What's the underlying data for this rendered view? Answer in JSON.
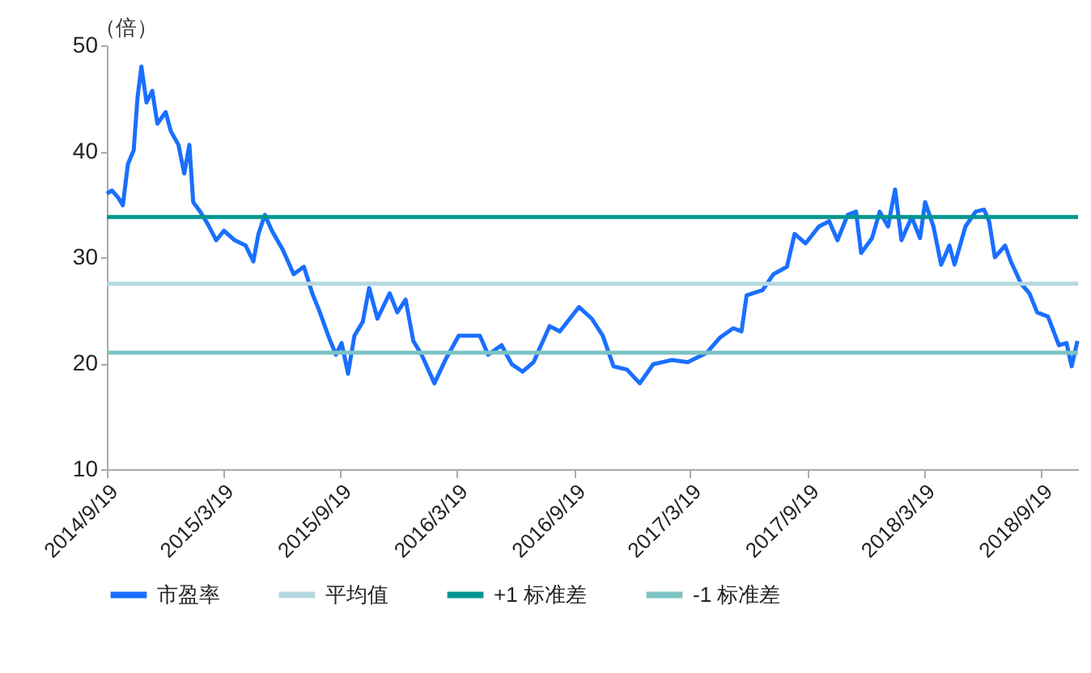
{
  "chart_data": {
    "type": "line",
    "ylabel": "（倍）",
    "x": [
      "2014-09-19",
      "2014-09-27",
      "2014-10-07",
      "2014-10-14",
      "2014-10-22",
      "2014-10-31",
      "2014-11-06",
      "2014-11-12",
      "2014-11-20",
      "2014-11-29",
      "2014-12-07",
      "2014-12-20",
      "2014-12-28",
      "2015-01-09",
      "2015-01-18",
      "2015-01-26",
      "2015-02-01",
      "2015-02-12",
      "2015-02-24",
      "2015-03-09",
      "2015-03-21",
      "2015-04-07",
      "2015-04-24",
      "2015-05-06",
      "2015-05-14",
      "2015-05-24",
      "2015-06-04",
      "2015-06-21",
      "2015-07-08",
      "2015-07-24",
      "2015-08-06",
      "2015-08-18",
      "2015-08-31",
      "2015-09-12",
      "2015-09-21",
      "2015-10-01",
      "2015-10-11",
      "2015-10-24",
      "2015-11-03",
      "2015-11-16",
      "2015-12-05",
      "2015-12-17",
      "2015-12-30",
      "2016-01-11",
      "2016-01-24",
      "2016-02-13",
      "2016-03-01",
      "2016-03-22",
      "2016-04-08",
      "2016-04-24",
      "2016-05-07",
      "2016-05-28",
      "2016-06-13",
      "2016-06-30",
      "2016-07-17",
      "2016-07-25",
      "2016-08-11",
      "2016-08-27",
      "2016-09-26",
      "2016-10-16",
      "2016-11-02",
      "2016-11-19",
      "2016-12-10",
      "2016-12-30",
      "2017-01-20",
      "2017-02-18",
      "2017-03-15",
      "2017-04-14",
      "2017-05-04",
      "2017-05-25",
      "2017-06-07",
      "2017-06-15",
      "2017-07-10",
      "2017-07-27",
      "2017-08-17",
      "2017-08-29",
      "2017-09-15",
      "2017-10-06",
      "2017-10-22",
      "2017-11-04",
      "2017-11-20",
      "2017-12-03",
      "2017-12-11",
      "2017-12-28",
      "2018-01-09",
      "2018-01-22",
      "2018-02-02",
      "2018-02-12",
      "2018-02-28",
      "2018-03-13",
      "2018-03-21",
      "2018-04-03",
      "2018-04-15",
      "2018-04-28",
      "2018-05-06",
      "2018-05-23",
      "2018-06-08",
      "2018-06-21",
      "2018-06-29",
      "2018-07-08",
      "2018-07-24",
      "2018-08-02",
      "2018-08-18",
      "2018-08-31",
      "2018-09-12",
      "2018-09-29",
      "2018-10-16",
      "2018-10-28",
      "2018-11-05",
      "2018-11-14"
    ],
    "series": [
      {
        "name": "市盈率",
        "color": "#1a6fff",
        "values": [
          36.0,
          36.3,
          35.6,
          34.9,
          38.8,
          40.1,
          45.1,
          48.0,
          44.6,
          45.7,
          42.6,
          43.7,
          41.9,
          40.6,
          37.9,
          40.6,
          35.2,
          34.3,
          33.1,
          31.6,
          32.5,
          31.6,
          31.1,
          29.6,
          32.2,
          34.0,
          32.5,
          30.7,
          28.4,
          29.1,
          26.6,
          24.8,
          22.6,
          20.8,
          21.9,
          19.0,
          22.6,
          23.9,
          27.1,
          24.2,
          26.6,
          24.8,
          26.0,
          22.1,
          20.8,
          18.1,
          20.3,
          22.6,
          22.6,
          22.6,
          20.8,
          21.7,
          19.9,
          19.2,
          20.1,
          21.2,
          23.5,
          23.0,
          25.3,
          24.2,
          22.6,
          19.7,
          19.4,
          18.1,
          19.9,
          20.3,
          20.1,
          21.0,
          22.4,
          23.3,
          23.0,
          26.4,
          26.9,
          28.4,
          29.1,
          32.2,
          31.3,
          32.9,
          33.4,
          31.6,
          34.0,
          34.3,
          30.4,
          31.8,
          34.3,
          32.9,
          36.4,
          31.6,
          33.8,
          31.8,
          35.2,
          32.9,
          29.3,
          31.1,
          29.3,
          32.9,
          34.3,
          34.5,
          33.4,
          30.0,
          31.1,
          29.6,
          27.5,
          26.6,
          24.8,
          24.4,
          21.7,
          21.9,
          19.7,
          22.1
        ]
      }
    ],
    "xlim": [
      "2014-09-19",
      "2018-11-15"
    ],
    "xticks": [
      {
        "value": "2014-09-19",
        "label": "2014/9/19"
      },
      {
        "value": "2015-03-19",
        "label": "2015/3/19"
      },
      {
        "value": "2015-09-19",
        "label": "2015/9/19"
      },
      {
        "value": "2016-03-19",
        "label": "2016/3/19"
      },
      {
        "value": "2016-09-19",
        "label": "2016/9/19"
      },
      {
        "value": "2017-03-19",
        "label": "2017/3/19"
      },
      {
        "value": "2017-09-19",
        "label": "2017/9/19"
      },
      {
        "value": "2018-03-19",
        "label": "2018/3/19"
      },
      {
        "value": "2018-09-19",
        "label": "2018/9/19"
      }
    ],
    "ylim": [
      10,
      50
    ],
    "yticks": [
      10,
      20,
      30,
      40,
      50
    ],
    "ref_lines": [
      {
        "axis": "y",
        "value": 27.5,
        "label": "平均值",
        "color": "#b5d7df"
      },
      {
        "axis": "y",
        "value": 33.8,
        "label": "+1 标准差",
        "color": "#009690"
      },
      {
        "axis": "y",
        "value": 21.0,
        "label": "-1 标准差",
        "color": "#7cc3c3"
      }
    ],
    "legend": "bottom",
    "line_style": "solid"
  }
}
